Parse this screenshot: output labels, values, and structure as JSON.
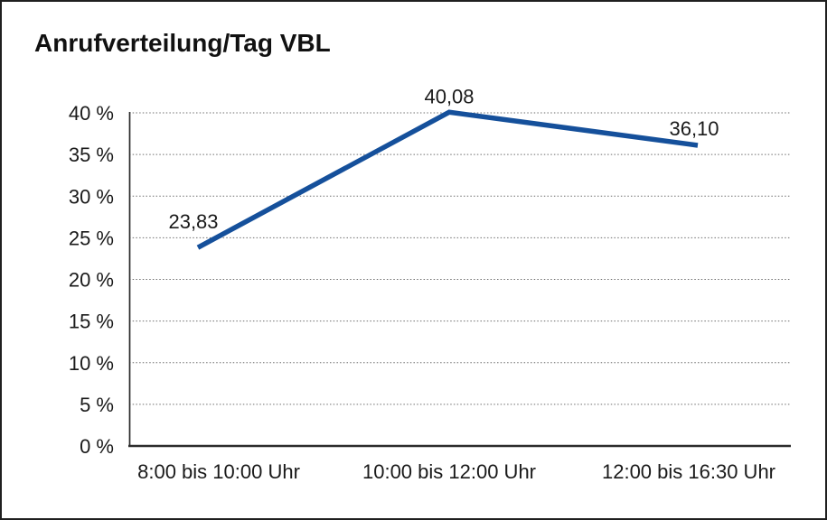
{
  "title": "Anrufverteilung/Tag VBL",
  "chart_data": {
    "type": "line",
    "title": "Anrufverteilung/Tag VBL",
    "categories": [
      "8:00 bis 10:00 Uhr",
      "10:00 bis 12:00 Uhr",
      "12:00 bis 16:30 Uhr"
    ],
    "values": [
      23.83,
      40.08,
      36.1
    ],
    "point_labels": [
      "23,83",
      "40,08",
      "36,10"
    ],
    "yticks": [
      0,
      5,
      10,
      15,
      20,
      25,
      30,
      35,
      40
    ],
    "ytick_labels": [
      "0 %",
      "5 %",
      "10 %",
      "15 %",
      "20 %",
      "25 %",
      "30 %",
      "35 %",
      "40 %"
    ],
    "ylim": [
      0,
      40
    ],
    "xlabel": "",
    "ylabel": "",
    "grid": "dotted horizontal",
    "legend": "none",
    "colors": {
      "line": "#15509b",
      "grid": "#6e6e6e",
      "axis": "#2b2b2b",
      "text": "#1a1a1a",
      "background": "#ffffff",
      "frame_border": "#1f1f1f"
    }
  }
}
